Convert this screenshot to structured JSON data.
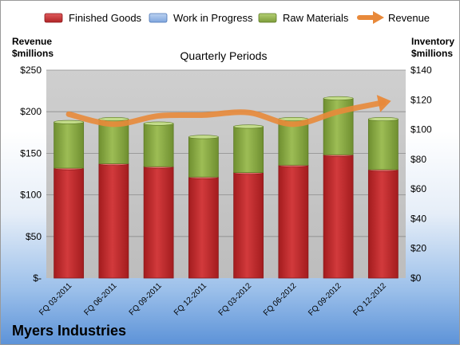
{
  "chart_data": {
    "type": "bar",
    "stacked": true,
    "subtitle": "Quarterly Periods",
    "company": "Myers Industries",
    "categories": [
      "FQ 03-2011",
      "FQ 06-2011",
      "FQ 09-2011",
      "FQ 12-2011",
      "FQ 03-2012",
      "FQ 06-2012",
      "FQ 09-2012",
      "FQ 12-2012"
    ],
    "series": [
      {
        "name": "Finished Goods",
        "axis": "right",
        "color": "#c0282a",
        "values": [
          74,
          77,
          75,
          68,
          71,
          76,
          83,
          73
        ]
      },
      {
        "name": "Work in Progress",
        "axis": "right",
        "color": "#7fa6dd",
        "values": [
          0,
          0,
          0,
          0,
          0,
          0,
          0,
          0
        ]
      },
      {
        "name": "Raw Materials",
        "axis": "right",
        "color": "#8bab45",
        "values": [
          31,
          30,
          29,
          27,
          31,
          31,
          38,
          34
        ]
      },
      {
        "name": "Revenue",
        "axis": "left",
        "type": "line",
        "color": "#e8893a",
        "values": [
          197,
          185,
          195,
          196,
          199,
          185,
          200,
          211
        ]
      }
    ],
    "left_axis": {
      "label_line1": "Revenue",
      "label_line2": "$millions",
      "ylim": [
        0,
        250
      ],
      "ticks": [
        "$-",
        "$50",
        "$100",
        "$150",
        "$200",
        "$250"
      ]
    },
    "right_axis": {
      "label_line1": "Inventory",
      "label_line2": "$millions",
      "ylim": [
        0,
        140
      ],
      "ticks": [
        "$0",
        "$20",
        "$40",
        "$60",
        "$80",
        "$100",
        "$120",
        "$140"
      ]
    },
    "legend_position": "top",
    "grid": true
  }
}
